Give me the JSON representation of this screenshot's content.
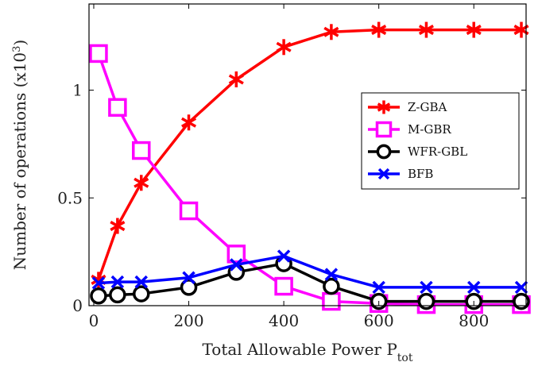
{
  "chart_data": {
    "type": "line",
    "xlabel": "Total Allowable Power P",
    "xlabel_sub": "tot",
    "ylabel": "Number of operations (x10",
    "ylabel_sup": "3",
    "ylabel_end": ")",
    "xlim": [
      -10,
      910
    ],
    "ylim": [
      0,
      1.4
    ],
    "xticks": [
      0,
      200,
      400,
      600,
      800
    ],
    "xtick_labels": [
      "0",
      "200",
      "400",
      "600",
      "800"
    ],
    "yticks": [
      0,
      0.5,
      1
    ],
    "ytick_labels": [
      "0",
      "0.5",
      "1"
    ],
    "grid": false,
    "legend_position": "right",
    "series": [
      {
        "name": "Z-GBA",
        "color": "#ff0000",
        "marker": "asterisk",
        "x": [
          10,
          50,
          100,
          200,
          300,
          400,
          500,
          600,
          700,
          800,
          900
        ],
        "y": [
          0.12,
          0.37,
          0.57,
          0.85,
          1.05,
          1.2,
          1.27,
          1.28,
          1.28,
          1.28,
          1.28
        ]
      },
      {
        "name": "M-GBR",
        "color": "#ff00ff",
        "marker": "square",
        "x": [
          10,
          50,
          100,
          200,
          300,
          400,
          500,
          600,
          700,
          800,
          900
        ],
        "y": [
          1.17,
          0.92,
          0.72,
          0.44,
          0.24,
          0.09,
          0.02,
          0.01,
          0.005,
          0.005,
          0.005
        ]
      },
      {
        "name": "WFR-GBL",
        "color": "#000000",
        "marker": "circle",
        "x": [
          10,
          50,
          100,
          200,
          300,
          400,
          500,
          600,
          700,
          800,
          900
        ],
        "y": [
          0.045,
          0.05,
          0.055,
          0.085,
          0.155,
          0.195,
          0.09,
          0.02,
          0.02,
          0.02,
          0.02
        ]
      },
      {
        "name": "BFB",
        "color": "#0000ff",
        "marker": "x",
        "x": [
          10,
          50,
          100,
          200,
          300,
          400,
          500,
          600,
          700,
          800,
          900
        ],
        "y": [
          0.105,
          0.11,
          0.11,
          0.13,
          0.19,
          0.23,
          0.145,
          0.085,
          0.085,
          0.085,
          0.085
        ]
      }
    ]
  }
}
